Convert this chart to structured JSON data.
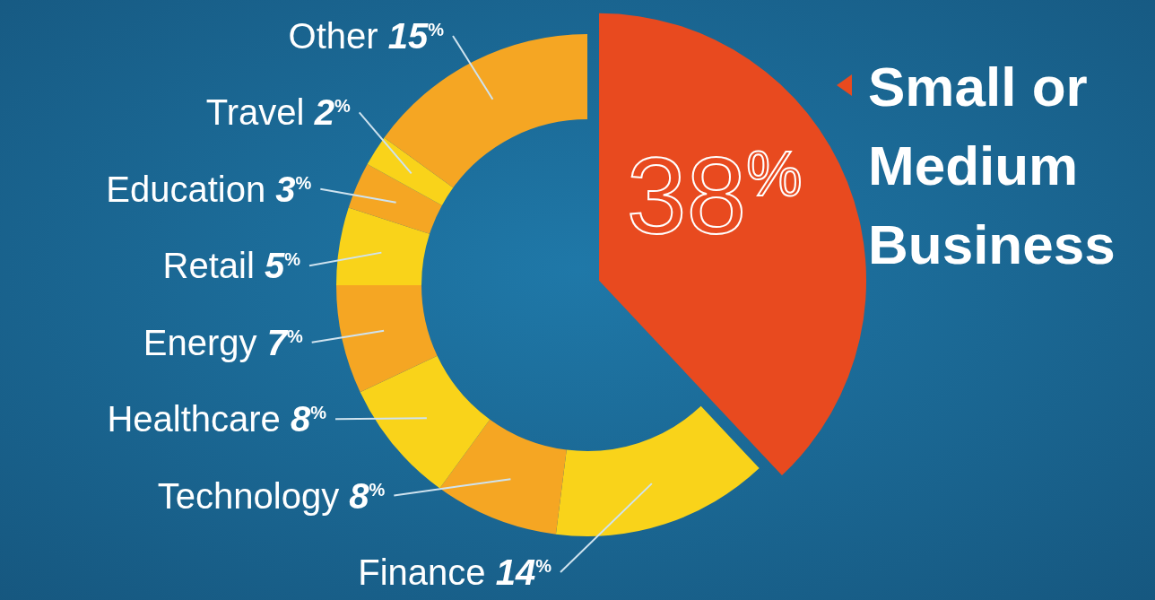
{
  "chart_data": {
    "type": "pie",
    "categories": [
      "Small or Medium Business",
      "Finance",
      "Technology",
      "Healthcare",
      "Energy",
      "Retail",
      "Education",
      "Travel",
      "Other"
    ],
    "values": [
      38,
      14,
      8,
      8,
      7,
      5,
      3,
      2,
      15
    ],
    "value_labels": [
      "38$^{%}$",
      "14$^{%}$",
      "8$^{%}$",
      "8$^{%}$",
      "7$^{%}$",
      "5$^{%}$",
      "3$^{%}$",
      "2$^{%}$",
      "15$^{%}$"
    ],
    "colors": [
      "#e84a1f",
      "#f9d31a",
      "#f5a623",
      "#f9d31a",
      "#f5a623",
      "#f9d31a",
      "#f5a623",
      "#f9d31a",
      "#f5a623"
    ]
  }
}
